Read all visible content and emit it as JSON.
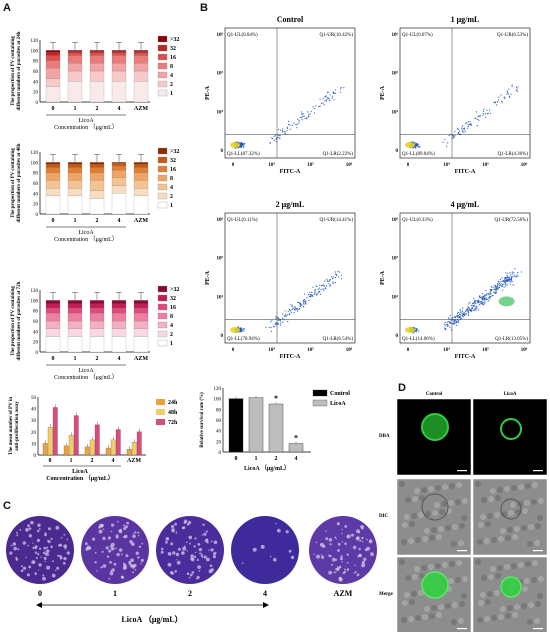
{
  "panel_labels": {
    "A": "A",
    "B": "B",
    "C": "C",
    "D": "D"
  },
  "panelA": {
    "charts": [
      {
        "ylabel": [
          "The proportion of PV containing",
          "different numbers of parasites at 24h"
        ],
        "categories": [
          "0",
          "1",
          "2",
          "4",
          "AZM"
        ],
        "group_label": "LicoA",
        "xlabel": "Concentration （μg/mL）",
        "colors": [
          "#f9eaea",
          "#f7c9c9",
          "#f2a3a3",
          "#ea7b7b",
          "#dd4f4f",
          "#c02424",
          "#8b0000"
        ],
        "values": [
          [
            30,
            40,
            40,
            40,
            40
          ],
          [
            15,
            20,
            20,
            20,
            20
          ],
          [
            20,
            15,
            15,
            15,
            15
          ],
          [
            15,
            15,
            15,
            15,
            15
          ],
          [
            10,
            5,
            5,
            5,
            5
          ],
          [
            6,
            3,
            3,
            3,
            3
          ],
          [
            4,
            2,
            2,
            2,
            2
          ]
        ]
      },
      {
        "ylabel": [
          "The proportion of PV containing",
          "different numbers of parasites at 48h"
        ],
        "categories": [
          "0",
          "1",
          "2",
          "4",
          "AZM"
        ],
        "group_label": "LicoA",
        "xlabel": "Concentration （μg/mL）",
        "colors": [
          "#ffffff",
          "#f8ddc1",
          "#f4c392",
          "#eea466",
          "#e07f33",
          "#c65a12",
          "#8b2e00"
        ],
        "values": [
          [
            35,
            35,
            30,
            40,
            35
          ],
          [
            15,
            15,
            15,
            15,
            15
          ],
          [
            15,
            15,
            20,
            15,
            15
          ],
          [
            15,
            15,
            15,
            15,
            15
          ],
          [
            10,
            10,
            10,
            8,
            10
          ],
          [
            6,
            6,
            6,
            5,
            6
          ],
          [
            4,
            4,
            4,
            2,
            4
          ]
        ]
      },
      {
        "ylabel": [
          "The proportion of PV containing",
          "different numbers of parasites at 72h"
        ],
        "categories": [
          "0",
          "1",
          "2",
          "4",
          "AZM"
        ],
        "group_label": "LicoA",
        "xlabel": "Concentration （μg/mL）",
        "colors": [
          "#ffffff",
          "#fbd8e1",
          "#f5aec2",
          "#ee7fa0",
          "#e0497a",
          "#c41c55",
          "#8e0a33"
        ],
        "values": [
          [
            30,
            30,
            30,
            30,
            30
          ],
          [
            15,
            15,
            15,
            15,
            15
          ],
          [
            15,
            15,
            15,
            15,
            15
          ],
          [
            15,
            15,
            15,
            15,
            15
          ],
          [
            10,
            10,
            10,
            10,
            10
          ],
          [
            8,
            8,
            8,
            8,
            8
          ],
          [
            7,
            7,
            7,
            7,
            7
          ]
        ]
      }
    ],
    "legend": [
      ">32",
      "32",
      "16",
      "8",
      "4",
      "2",
      "1"
    ],
    "yticks": [
      "0",
      "20",
      "40",
      "60",
      "80",
      "100",
      "120"
    ],
    "bar_chart": {
      "ylabel": [
        "The mean number of PV in",
        "anti-proliferation assay"
      ],
      "categories": [
        "0",
        "1",
        "2",
        "4",
        "AZM"
      ],
      "series": [
        {
          "name": "24h",
          "color": "#e8a341",
          "values": [
            10,
            8,
            7,
            6,
            5
          ]
        },
        {
          "name": "48h",
          "color": "#f2cc66",
          "values": [
            24,
            17,
            13,
            13,
            11
          ]
        },
        {
          "name": "72h",
          "color": "#d94c7c",
          "values": [
            41,
            34,
            26,
            22,
            20
          ]
        }
      ],
      "yticks": [
        "0",
        "10",
        "20",
        "30",
        "40",
        "50"
      ],
      "group_label": "LicoA",
      "xlabel": "Concentration （μg/mL）"
    }
  },
  "panelB": {
    "plots": [
      {
        "title": "Control",
        "UL": "Q1-UL(0.04%)",
        "UR": "Q1-UR(10.42%)",
        "LL": "Q1-LL(87.32%)",
        "LR": "Q1-LR(2.22%)"
      },
      {
        "title": "1 μg/mL",
        "UL": "Q1-UL(0.07%)",
        "UR": "Q1-UR(6.53%)",
        "LL": "Q1-LL(89.04%)",
        "LR": "Q1-LR(4.36%)"
      },
      {
        "title": "2 μg/mL",
        "UL": "Q1-UL(0.11%)",
        "UR": "Q1-UR(14.41%)",
        "LL": "Q1-LL(78.94%)",
        "LR": "Q1-LR(6.54%)"
      },
      {
        "title": "4 μg/mL",
        "UL": "Q1-UL(0.33%)",
        "UR": "Q1-UR(72.56%)",
        "LL": "Q1-LL(14.06%)",
        "LR": "Q1-LR(13.05%)"
      }
    ],
    "xaxis": "FITC-A",
    "yaxis": "PE-A",
    "ticks": [
      "0",
      "10⁴",
      "10⁵",
      "10⁶"
    ],
    "yticks": [
      "0",
      "10⁴",
      "10⁵",
      "10⁶"
    ],
    "survival": {
      "ylabel": "Relative survival rate (%)",
      "categories": [
        "0",
        "1",
        "2",
        "4"
      ],
      "values": [
        100,
        102,
        90,
        16
      ],
      "colors": [
        "#000000",
        "#bdbdbd",
        "#bdbdbd",
        "#bdbdbd"
      ],
      "stars": [
        "",
        "",
        "*",
        "*"
      ],
      "yticks": [
        "0",
        "20",
        "40",
        "60",
        "80",
        "100",
        "120"
      ],
      "xlabel": "LicoA （μg/mL）",
      "legend": [
        {
          "name": "Control",
          "color": "#000000"
        },
        {
          "name": "LicoA",
          "color": "#bdbdbd"
        }
      ]
    }
  },
  "panelC": {
    "labels": [
      "0",
      "1",
      "2",
      "4",
      "AZM"
    ],
    "axis_label": "LicoA （μg/mL）"
  },
  "panelD": {
    "cols": [
      "Control",
      "LicoA"
    ],
    "rows": [
      "DBA",
      "DIC",
      "Merge"
    ]
  }
}
